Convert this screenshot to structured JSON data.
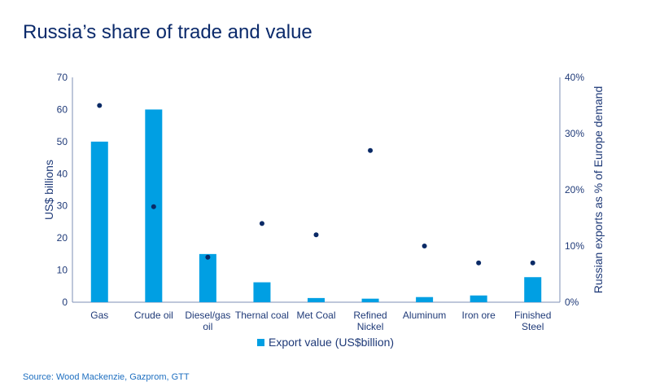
{
  "title": "Russia’s share of trade and value",
  "source": "Source: Wood Mackenzie, Gazprom, GTT",
  "chart_data": {
    "type": "bar",
    "title": "Russia’s share of trade and value",
    "categories": [
      [
        "Gas"
      ],
      [
        "Crude oil"
      ],
      [
        "Diesel/gas",
        "oil"
      ],
      [
        "Thernal coal"
      ],
      [
        "Met Coal"
      ],
      [
        "Refined",
        "Nickel"
      ],
      [
        "Aluminum"
      ],
      [
        "Iron ore"
      ],
      [
        "Finished",
        "Steel"
      ]
    ],
    "category_labels": [
      "Gas",
      "Crude oil",
      "Diesel/gas oil",
      "Thernal coal",
      "Met Coal",
      "Refined Nickel",
      "Aluminum",
      "Iron ore",
      "Finished Steel"
    ],
    "series": [
      {
        "name": "Export value (US$billion)",
        "type": "bar",
        "axis": "left",
        "values": [
          50,
          60,
          15,
          6.2,
          1.3,
          1.1,
          1.6,
          2.1,
          7.8
        ],
        "color": "#009fe3"
      },
      {
        "type": "scatter",
        "axis": "right",
        "values": [
          35,
          17,
          8,
          14,
          12,
          27,
          10,
          7,
          7
        ],
        "color": "#0a2a66"
      }
    ],
    "ylabel": "US$ billions",
    "ylim": [
      0,
      70
    ],
    "yticks": [
      "0",
      "10",
      "20",
      "30",
      "40",
      "50",
      "60",
      "70"
    ],
    "y2label": "Russian exports as % of Europe demand",
    "y2lim": [
      0,
      40
    ],
    "y2ticks": [
      "0%",
      "10%",
      "20%",
      "30%",
      "40%"
    ],
    "legend": "bottom",
    "grid": false
  }
}
